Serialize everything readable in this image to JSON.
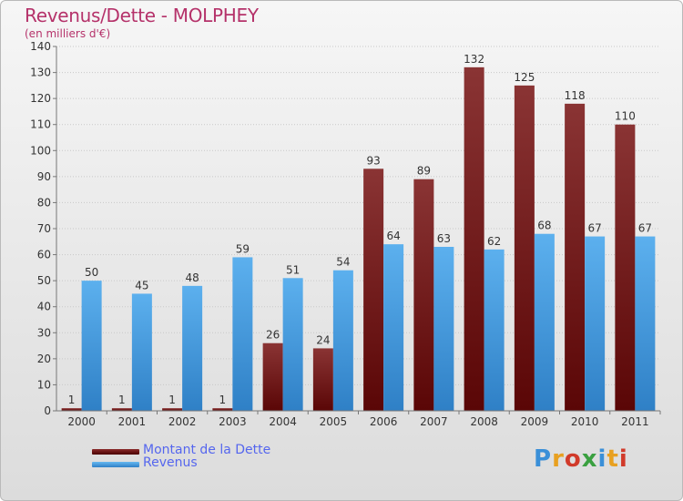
{
  "header": {
    "title": "Revenus/Dette - MOLPHEY",
    "subtitle": "(en milliers d'€)"
  },
  "colors": {
    "dette": "#7a1f1f",
    "revenus": "#4aa0e0",
    "axis_text": "#333333",
    "grid": "#c8c8c8"
  },
  "legend": {
    "items": [
      {
        "label": "Montant de la Dette",
        "color": "#6b1111"
      },
      {
        "label": "Revenus",
        "color": "#4aa0e0"
      }
    ]
  },
  "logo": {
    "text": "Proxiti"
  },
  "chart_data": {
    "type": "bar",
    "categories": [
      "2000",
      "2001",
      "2002",
      "2003",
      "2004",
      "2005",
      "2006",
      "2007",
      "2008",
      "2009",
      "2010",
      "2011"
    ],
    "series": [
      {
        "name": "Montant de la Dette",
        "values": [
          1,
          1,
          1,
          1,
          26,
          24,
          93,
          89,
          132,
          125,
          118,
          110
        ]
      },
      {
        "name": "Revenus",
        "values": [
          50,
          45,
          48,
          59,
          51,
          54,
          64,
          63,
          62,
          68,
          67,
          67
        ]
      }
    ],
    "title": "Revenus/Dette - MOLPHEY",
    "ylabel": "(en milliers d'€)",
    "xlabel": "",
    "ylim": [
      0,
      140
    ],
    "yticks": [
      0,
      10,
      20,
      30,
      40,
      50,
      60,
      70,
      80,
      90,
      100,
      110,
      120,
      130,
      140
    ],
    "grid": true,
    "legend_position": "bottom-left"
  }
}
